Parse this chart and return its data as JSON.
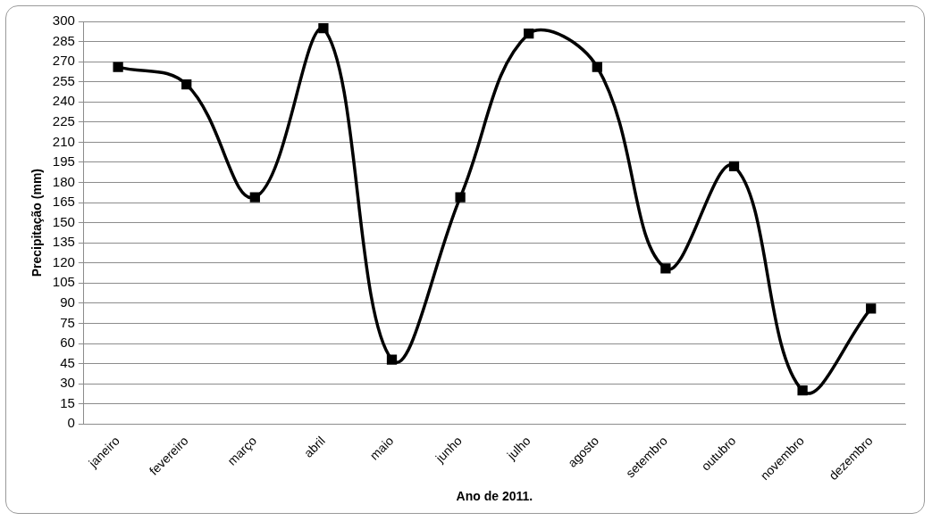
{
  "chart_data": {
    "type": "line",
    "xlabel": "Ano de 2011.",
    "ylabel": "Precipitação (mm)",
    "categories": [
      "janeiro",
      "fevereiro",
      "março",
      "abril",
      "maio",
      "junho",
      "julho",
      "agosto",
      "setembro",
      "outubro",
      "novembro",
      "dezembro"
    ],
    "series": [
      {
        "color": "#000000",
        "values": [
          266,
          253,
          169,
          295,
          48,
          169,
          291,
          266,
          116,
          192,
          25,
          86
        ]
      }
    ],
    "ylim": [
      0,
      300
    ],
    "yticks": [
      0,
      15,
      30,
      45,
      60,
      75,
      90,
      105,
      120,
      135,
      150,
      165,
      180,
      195,
      210,
      225,
      240,
      255,
      270,
      285,
      300
    ],
    "grid": "y",
    "legend": false,
    "marker": "square",
    "line_style": "solid"
  }
}
